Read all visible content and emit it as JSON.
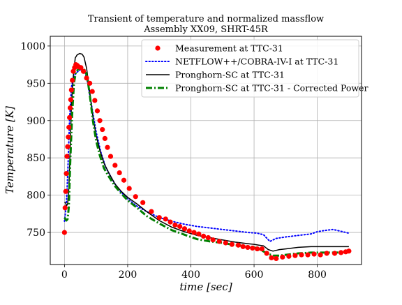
{
  "chart_data": {
    "type": "line",
    "title": "Transient of temperature and normalized massflow",
    "subtitle": "Assembly XX09, SHRT-45R",
    "xlabel": "time [sec]",
    "ylabel": "Temperature [K]",
    "xlim": [
      -45,
      940
    ],
    "ylim": [
      707,
      1013
    ],
    "xticks": [
      0,
      200,
      400,
      600,
      800
    ],
    "yticks": [
      750,
      800,
      850,
      900,
      950,
      1000
    ],
    "grid": true,
    "legend_position": "top-right",
    "series": [
      {
        "name": "Measurement at TTC-31",
        "style": "markers",
        "color": "#ff0000",
        "x": [
          0,
          2,
          4,
          6,
          8,
          10,
          12,
          14,
          16,
          18,
          20,
          22,
          25,
          28,
          32,
          36,
          40,
          45,
          52,
          60,
          70,
          80,
          88,
          96,
          104,
          112,
          120,
          128,
          136,
          146,
          160,
          174,
          188,
          205,
          225,
          248,
          275,
          300,
          320,
          335,
          350,
          365,
          380,
          395,
          410,
          425,
          440,
          455,
          470,
          490,
          510,
          530,
          550,
          565,
          580,
          595,
          610,
          625,
          640,
          655,
          670,
          690,
          710,
          730,
          750,
          770,
          790,
          810,
          830,
          855,
          875,
          890,
          900
        ],
        "y": [
          750,
          783,
          805,
          829,
          852,
          865,
          878,
          891,
          904,
          917,
          928,
          941,
          954,
          966,
          971,
          975,
          974,
          972,
          971,
          966,
          957,
          950,
          939,
          927,
          913,
          900,
          888,
          876,
          864,
          852,
          840,
          830,
          820,
          809,
          798,
          790,
          778,
          770,
          768,
          764,
          760,
          758,
          755,
          752,
          750,
          748,
          745,
          743,
          740,
          738,
          736,
          734,
          733,
          731,
          730,
          729,
          728,
          728,
          722,
          716,
          715,
          717,
          718,
          719,
          720,
          720,
          721,
          720,
          722,
          722,
          723,
          724,
          725
        ]
      },
      {
        "name": "NETFLOW++/COBRA-IV-I at TTC-31",
        "style": "dotted",
        "color": "#0000ff",
        "x": [
          0,
          3,
          6,
          8,
          12,
          16,
          22,
          30,
          40,
          50,
          58,
          66,
          74,
          82,
          90,
          100,
          115,
          130,
          150,
          170,
          200,
          230,
          260,
          300,
          340,
          380,
          420,
          460,
          500,
          540,
          580,
          610,
          630,
          650,
          670,
          700,
          740,
          780,
          800,
          830,
          850,
          870,
          900
        ],
        "y": [
          765,
          775,
          790,
          805,
          848,
          900,
          945,
          960,
          965,
          968,
          968,
          963,
          950,
          930,
          910,
          885,
          858,
          838,
          822,
          808,
          795,
          785,
          778,
          770,
          765,
          761,
          758,
          756,
          754,
          752,
          750,
          749,
          747,
          738,
          742,
          744,
          746,
          748,
          751,
          753,
          754,
          752,
          749
        ]
      },
      {
        "name": "Pronghorn-SC at TTC-31",
        "style": "solid",
        "color": "#000000",
        "x": [
          0,
          3,
          5,
          7,
          10,
          14,
          18,
          22,
          28,
          34,
          40,
          48,
          56,
          62,
          70,
          80,
          90,
          100,
          112,
          125,
          140,
          160,
          180,
          200,
          230,
          260,
          300,
          340,
          380,
          420,
          460,
          500,
          540,
          580,
          600,
          615,
          630,
          645,
          660,
          680,
          700,
          740,
          780,
          820,
          860,
          900
        ],
        "y": [
          790,
          790,
          788,
          786,
          788,
          810,
          860,
          920,
          960,
          984,
          988,
          990,
          989,
          985,
          970,
          938,
          905,
          880,
          860,
          843,
          830,
          815,
          805,
          797,
          788,
          778,
          766,
          757,
          751,
          746,
          743,
          740,
          737,
          735,
          734,
          733,
          732,
          727,
          725,
          727,
          728,
          730,
          731,
          731,
          731,
          731
        ]
      },
      {
        "name": "Pronghorn-SC at TTC-31 - Corrected Power",
        "style": "dashdot",
        "color": "#008000",
        "x": [
          0,
          3,
          6,
          10,
          14,
          18,
          24,
          30,
          36,
          42,
          50,
          58,
          66,
          72,
          80,
          90,
          100,
          112,
          125,
          140,
          160,
          180,
          200,
          230,
          260,
          300,
          340,
          380,
          420,
          460,
          500,
          540,
          580,
          600,
          620,
          640,
          660,
          680,
          700,
          740,
          780,
          820,
          860,
          900
        ],
        "y": [
          770,
          768,
          766,
          768,
          785,
          840,
          905,
          950,
          965,
          968,
          970,
          970,
          967,
          958,
          935,
          900,
          873,
          853,
          836,
          825,
          812,
          802,
          793,
          783,
          772,
          762,
          753,
          747,
          741,
          738,
          736,
          733,
          731,
          730,
          727,
          722,
          719,
          719,
          720,
          722,
          723,
          723,
          723,
          724
        ]
      }
    ]
  }
}
